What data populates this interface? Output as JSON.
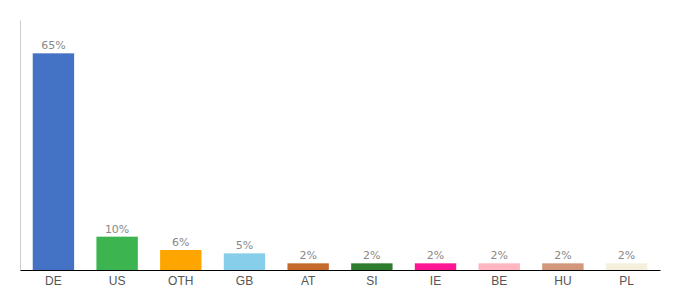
{
  "chart_data": {
    "type": "bar",
    "categories": [
      "DE",
      "US",
      "OTH",
      "GB",
      "AT",
      "SI",
      "IE",
      "BE",
      "HU",
      "PL"
    ],
    "values": [
      65,
      10,
      6,
      5,
      2,
      2,
      2,
      2,
      2,
      2
    ],
    "value_labels": [
      "65%",
      "10%",
      "6%",
      "5%",
      "2%",
      "2%",
      "2%",
      "2%",
      "2%",
      "2%"
    ],
    "colors": [
      "#4472C4",
      "#3CB550",
      "#FFA500",
      "#87CEEB",
      "#C46A2A",
      "#2E7D2E",
      "#FF1493",
      "#FFB6C1",
      "#D2977A",
      "#F5F0DC"
    ],
    "ylim": [
      0,
      75
    ],
    "data_labels": true,
    "tick_labels": "x",
    "grid": false
  }
}
